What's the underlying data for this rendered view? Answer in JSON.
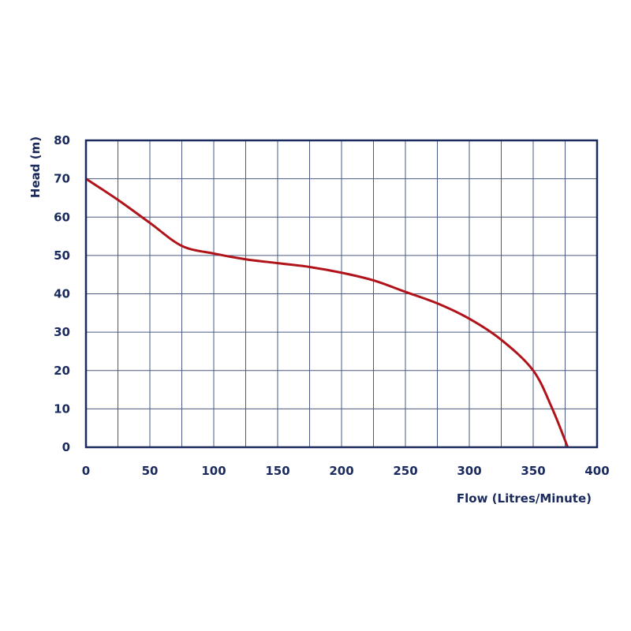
{
  "chart_data": {
    "type": "line",
    "xlabel": "Flow (Litres/Minute)",
    "ylabel": "Head (m)",
    "xlim": [
      0,
      400
    ],
    "ylim": [
      0,
      80
    ],
    "x_ticks": [
      "0",
      "50",
      "100",
      "150",
      "200",
      "250",
      "300",
      "350",
      "400"
    ],
    "y_ticks": [
      "0",
      "10",
      "20",
      "30",
      "40",
      "50",
      "60",
      "70",
      "80"
    ],
    "x_grid_step": 25,
    "y_grid_step": 10,
    "grid": true,
    "series": [
      {
        "color": "#b0141a",
        "x": [
          0,
          25,
          50,
          75,
          100,
          125,
          150,
          175,
          200,
          225,
          250,
          275,
          300,
          325,
          350,
          365,
          377
        ],
        "y": [
          70,
          64.5,
          58.5,
          52.5,
          50.5,
          49,
          48,
          47,
          45.5,
          43.5,
          40.5,
          37.5,
          33.5,
          28,
          20,
          10,
          0
        ]
      }
    ],
    "colors": {
      "axis": "#1a2a5c",
      "grid": "#4a5a80",
      "line": "#b0141a"
    }
  }
}
